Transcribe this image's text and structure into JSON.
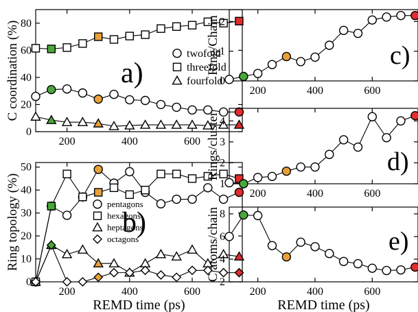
{
  "colors": {
    "green": "#4aa83a",
    "orange": "#e8a13a",
    "red": "#e02d2d",
    "open": "#ffffff",
    "line": "#000000"
  },
  "chart_data": [
    {
      "id": "a",
      "type": "line",
      "panel_label": "a)",
      "ylabel": "C coordination (%)",
      "xlabel": "",
      "xlim": [
        100,
        760
      ],
      "ylim": [
        0,
        90
      ],
      "xticks": [
        200,
        400,
        600
      ],
      "yticks": [
        0,
        20,
        40,
        60,
        80
      ],
      "legend_position": "middle-right",
      "series": [
        {
          "name": "twofold",
          "marker": "circle",
          "x": [
            100,
            150,
            200,
            250,
            300,
            350,
            400,
            450,
            500,
            550,
            600,
            650,
            700,
            750
          ],
          "y": [
            26,
            31,
            31.5,
            28.5,
            24,
            27.5,
            23.5,
            23,
            20,
            18,
            16,
            16,
            14.5,
            14.5
          ]
        },
        {
          "name": "threefold",
          "marker": "square",
          "x": [
            100,
            150,
            200,
            250,
            300,
            350,
            400,
            450,
            500,
            550,
            600,
            650,
            700,
            750
          ],
          "y": [
            61.5,
            61,
            62,
            65,
            70,
            68,
            70.5,
            71.5,
            76,
            77.5,
            78.5,
            81,
            80,
            81.5
          ]
        },
        {
          "name": "fourfold",
          "marker": "triangle",
          "x": [
            100,
            150,
            200,
            250,
            300,
            350,
            400,
            450,
            500,
            550,
            600,
            650,
            700,
            750
          ],
          "y": [
            11,
            8.5,
            7,
            7,
            6,
            4,
            4.5,
            5,
            5,
            5,
            5,
            4.5,
            5,
            5
          ]
        }
      ],
      "highlight": {
        "150": "green",
        "300": "orange",
        "750": "red"
      }
    },
    {
      "id": "b",
      "type": "line",
      "panel_label": "b)",
      "ylabel": "Ring topology (%)",
      "xlabel": "REMD time (ps)",
      "xlim": [
        100,
        760
      ],
      "ylim": [
        0,
        52
      ],
      "xticks": [
        200,
        400,
        600
      ],
      "yticks": [
        0,
        10,
        20,
        30,
        40,
        50
      ],
      "legend_position": "middle",
      "series": [
        {
          "name": "pentagons",
          "marker": "circle",
          "x": [
            100,
            150,
            200,
            250,
            300,
            350,
            400,
            450,
            500,
            550,
            600,
            650,
            700,
            750
          ],
          "y": [
            0,
            33,
            29,
            37,
            49,
            43,
            48,
            39,
            34,
            36,
            36,
            41,
            36,
            39
          ]
        },
        {
          "name": "hexagons",
          "marker": "square",
          "x": [
            100,
            150,
            200,
            250,
            300,
            350,
            400,
            450,
            500,
            550,
            600,
            650,
            700,
            750
          ],
          "y": [
            0,
            33,
            47,
            37,
            39,
            41,
            38,
            40,
            47,
            47,
            45,
            46,
            47,
            45
          ]
        },
        {
          "name": "heptagons",
          "marker": "triangle",
          "x": [
            100,
            150,
            200,
            250,
            300,
            350,
            400,
            450,
            500,
            550,
            600,
            650,
            700,
            750
          ],
          "y": [
            0,
            16,
            12,
            14,
            8,
            8,
            4,
            8,
            12,
            11,
            14,
            8,
            12,
            11
          ]
        },
        {
          "name": "octagons",
          "marker": "diamond",
          "x": [
            100,
            150,
            200,
            250,
            300,
            350,
            400,
            450,
            500,
            550,
            600,
            650,
            700,
            750
          ],
          "y": [
            0,
            16,
            0,
            0,
            2,
            4,
            4,
            5,
            3,
            2,
            5,
            5,
            4,
            4
          ]
        }
      ],
      "highlight": {
        "150": "green",
        "300": "orange",
        "750": "red"
      }
    },
    {
      "id": "c",
      "type": "line",
      "panel_label": "c)",
      "ylabel": "Ring/Chain",
      "xlabel": "",
      "xlim": [
        100,
        760
      ],
      "ylim": [
        0,
        2.4
      ],
      "xticks": [
        200,
        400,
        600
      ],
      "yticks": [
        0,
        1,
        2
      ],
      "series": [
        {
          "name": "",
          "marker": "circle",
          "x": [
            100,
            150,
            200,
            250,
            300,
            350,
            400,
            450,
            500,
            550,
            600,
            650,
            700,
            750
          ],
          "y": [
            0.05,
            0.15,
            0.25,
            0.55,
            0.82,
            0.65,
            0.8,
            1.2,
            1.7,
            1.6,
            2.05,
            2.15,
            2.2,
            2.2
          ]
        }
      ],
      "highlight": {
        "150": "green",
        "300": "orange",
        "750": "red"
      }
    },
    {
      "id": "d",
      "type": "line",
      "panel_label": "d)",
      "ylabel": "Rings/cluster",
      "xlabel": "",
      "xlim": [
        100,
        760
      ],
      "ylim": [
        1,
        4.6
      ],
      "xticks": [
        200,
        400,
        600
      ],
      "yticks": [
        1,
        2,
        3,
        4
      ],
      "series": [
        {
          "name": "",
          "marker": "circle",
          "x": [
            100,
            150,
            200,
            250,
            300,
            350,
            400,
            450,
            500,
            550,
            600,
            650,
            700,
            750
          ],
          "y": [
            1.05,
            1.0,
            1.3,
            1.35,
            1.6,
            1.8,
            1.8,
            2.4,
            3.1,
            2.75,
            4.2,
            3.2,
            4.0,
            4.25
          ]
        }
      ],
      "highlight": {
        "150": "green",
        "300": "orange",
        "750": "red"
      }
    },
    {
      "id": "e",
      "type": "line",
      "panel_label": "e)",
      "ylabel": "C atoms/chain",
      "xlabel": "REMD time (ps)",
      "xlim": [
        100,
        760
      ],
      "ylim": [
        2,
        8.6
      ],
      "xticks": [
        200,
        400,
        600
      ],
      "yticks": [
        2,
        4,
        6,
        8
      ],
      "series": [
        {
          "name": "",
          "marker": "circle",
          "x": [
            100,
            150,
            200,
            250,
            300,
            350,
            400,
            450,
            500,
            550,
            600,
            650,
            700,
            750
          ],
          "y": [
            6.0,
            7.9,
            7.85,
            5.2,
            4.2,
            5.5,
            5.1,
            4.5,
            3.8,
            3.6,
            3.2,
            3.0,
            3.05,
            3.3
          ]
        }
      ],
      "highlight": {
        "150": "green",
        "300": "orange",
        "750": "red"
      }
    }
  ]
}
